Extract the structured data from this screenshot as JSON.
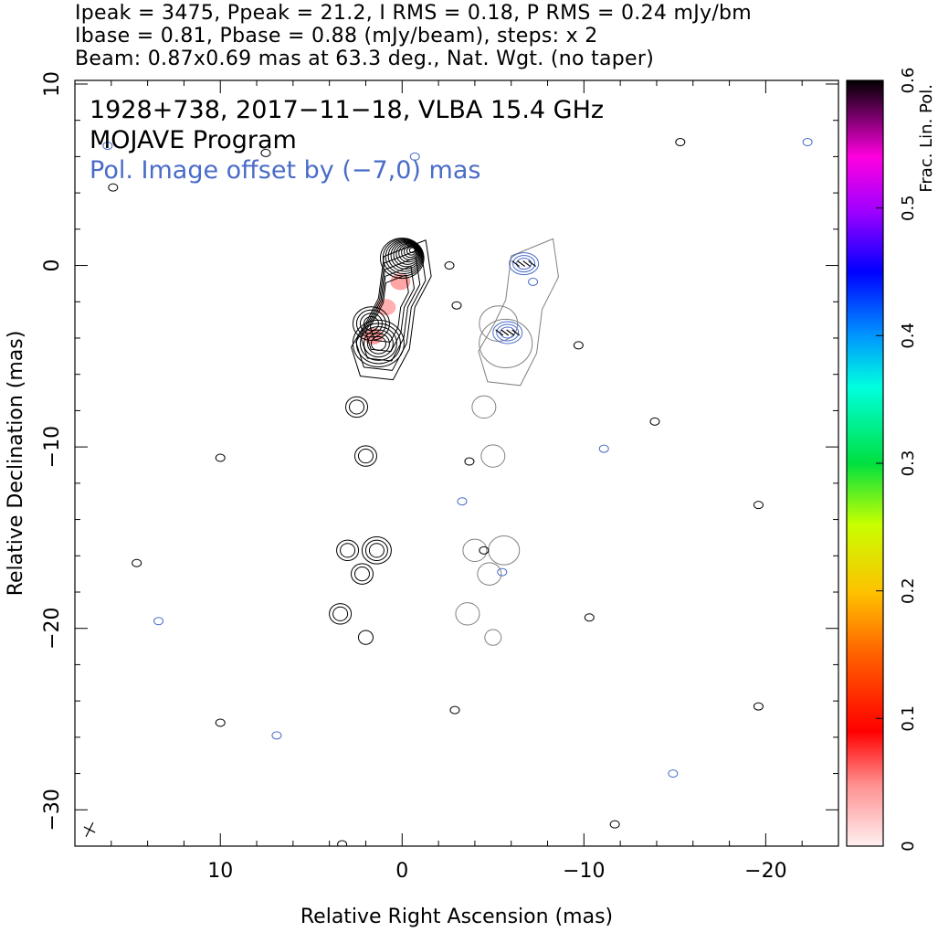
{
  "header": {
    "line1": "Ipeak = 3475, Ppeak = 21.2, I RMS = 0.18, P RMS = 0.24 mJy/bm",
    "line2": "Ibase = 0.81, Pbase = 0.88 (mJy/beam), steps: x 2",
    "line3": "Beam: 0.87x0.69 mas at 63.3 deg., Nat. Wgt. (no taper)"
  },
  "annotations": {
    "source": "1928+738, 2017−11−18, VLBA 15.4 GHz",
    "program": "MOJAVE Program",
    "offset_note": "Pol. Image offset by (−7,0) mas"
  },
  "colors": {
    "stokes_i_contour": "#000000",
    "pol_contour_inner": "#4a6cc8",
    "pol_contour_outer": "#808080",
    "annotation_blue": "#4a6cc8",
    "evpa_tick": "#000000"
  },
  "chart_data": {
    "type": "contour",
    "xlabel": "Relative Right Ascension (mas)",
    "ylabel": "Relative Declination (mas)",
    "xlim": [
      18,
      -24
    ],
    "ylim": [
      -32,
      10.2
    ],
    "x_ticks": [
      10,
      0,
      -10,
      -20
    ],
    "x_tick_labels": [
      "10",
      "0",
      "−10",
      "−20"
    ],
    "y_ticks": [
      10,
      0,
      -10,
      -20,
      -30
    ],
    "y_tick_labels": [
      "10",
      "0",
      "−10",
      "−20",
      "−30"
    ],
    "colorbar": {
      "label": "Frac. Lin. Pol.",
      "range": [
        0,
        0.6
      ],
      "ticks": [
        0,
        0.1,
        0.2,
        0.3,
        0.4,
        0.5,
        0.6
      ],
      "tick_labels": [
        "0",
        "0.1",
        "0.2",
        "0.3",
        "0.4",
        "0.5",
        "0.6"
      ]
    },
    "beam": {
      "major_mas": 0.87,
      "minor_mas": 0.69,
      "pa_deg": 63.3
    },
    "core": {
      "x": 0.0,
      "y": 0.4,
      "levels": 12
    },
    "jet_components": [
      {
        "x": 1.3,
        "y": -4.3,
        "levels": 6
      },
      {
        "x": 1.7,
        "y": -3.2,
        "levels": 4
      },
      {
        "x": 2.5,
        "y": -7.8,
        "levels": 2
      },
      {
        "x": 2.0,
        "y": -10.5,
        "levels": 2
      },
      {
        "x": 3.0,
        "y": -15.7,
        "levels": 2
      },
      {
        "x": 1.4,
        "y": -15.7,
        "levels": 3
      },
      {
        "x": 2.2,
        "y": -17.0,
        "levels": 2
      },
      {
        "x": 3.4,
        "y": -19.2,
        "levels": 2
      },
      {
        "x": 2.0,
        "y": -20.5,
        "levels": 1
      }
    ],
    "frac_pol_regions": [
      {
        "x": 0.1,
        "y": -0.9,
        "value": 0.04
      },
      {
        "x": 1.6,
        "y": -3.9,
        "value": 0.05
      },
      {
        "x": 0.9,
        "y": -2.3,
        "value": 0.02
      }
    ],
    "pol_offset_x_mas": -7,
    "pol_components": [
      {
        "x": 0.3,
        "y": 0.1
      },
      {
        "x": 1.2,
        "y": -3.7
      }
    ]
  }
}
